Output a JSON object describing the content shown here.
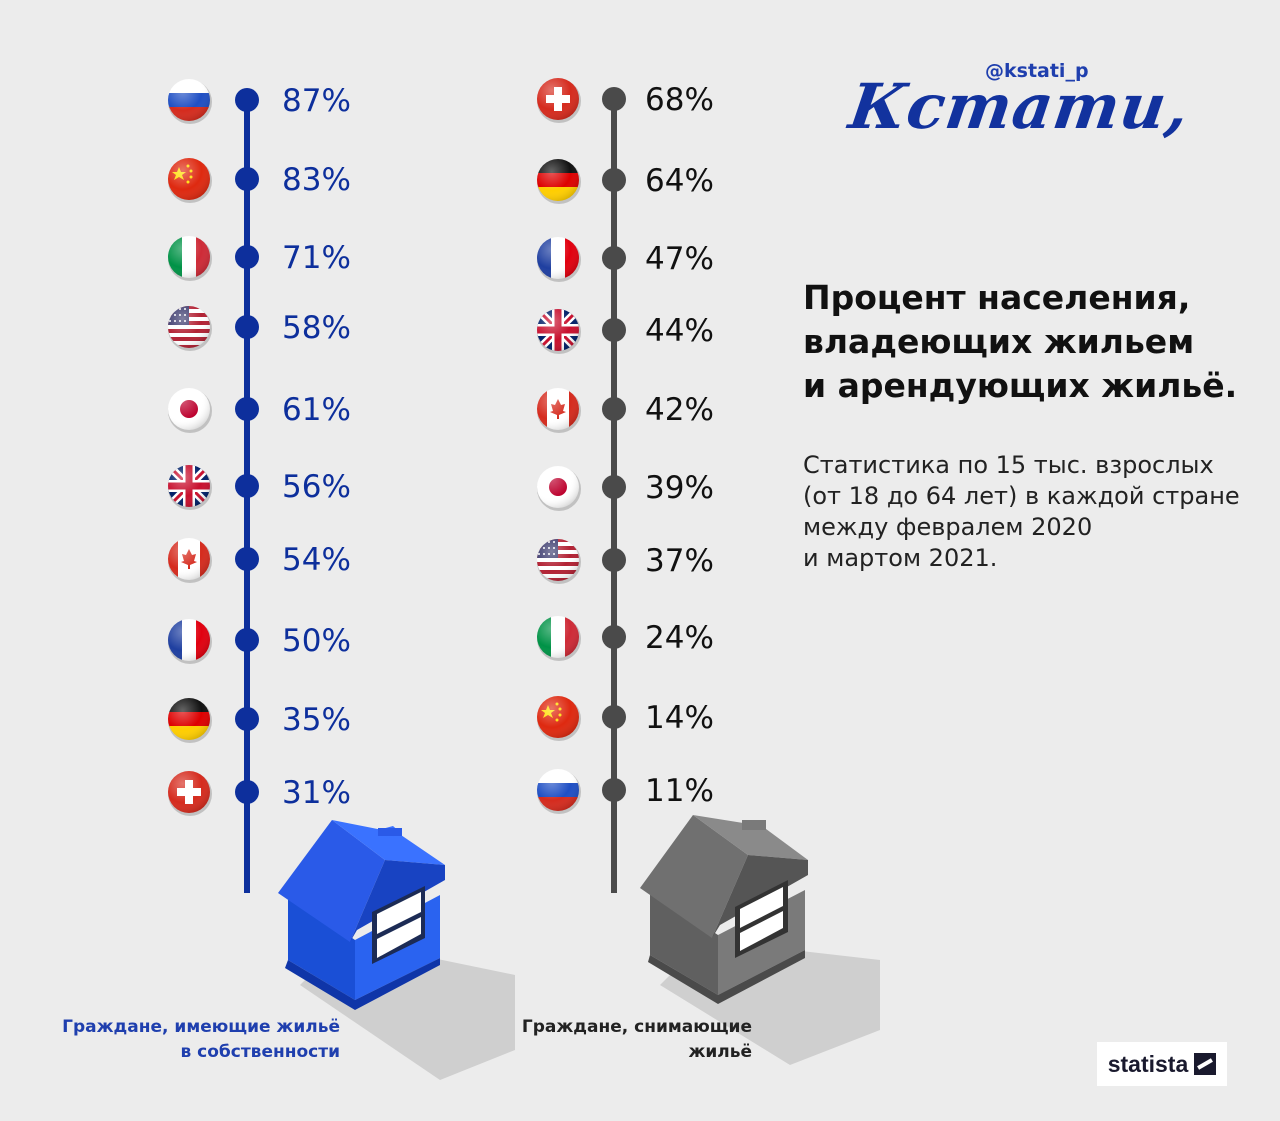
{
  "header": {
    "handle": "@kstati_p",
    "logo_text": "Кстати,"
  },
  "text": {
    "title_line1": "Процент населения,",
    "title_line2": "владеющих жильем",
    "title_line3": "и арендующих жильё.",
    "subtitle_line1": "Статистика по 15 тыс. взрослых",
    "subtitle_line2": "(от 18 до 64 лет) в каждой стране",
    "subtitle_line3": "между февралем 2020",
    "subtitle_line4": "и мартом 2021."
  },
  "captions": {
    "own_line1": "Граждане, имеющие жильё",
    "own_line2": "в собственности",
    "rent_line1": "Граждане, снимающие",
    "rent_line2": "жильё"
  },
  "source": "statista",
  "colors": {
    "own": "#0d2f9c",
    "rent": "#4a4a4a",
    "own_house": "#1f56e0",
    "rent_house": "#707070"
  },
  "chart_data": {
    "type": "table",
    "series": [
      {
        "name": "Граждане, имеющие жильё в собственности",
        "items": [
          {
            "country": "russia",
            "value": 87,
            "label": "87%"
          },
          {
            "country": "china",
            "value": 83,
            "label": "83%"
          },
          {
            "country": "italy",
            "value": 71,
            "label": "71%"
          },
          {
            "country": "usa",
            "value": 58,
            "label": "58%"
          },
          {
            "country": "japan",
            "value": 61,
            "label": "61%"
          },
          {
            "country": "uk",
            "value": 56,
            "label": "56%"
          },
          {
            "country": "canada",
            "value": 54,
            "label": "54%"
          },
          {
            "country": "france",
            "value": 50,
            "label": "50%"
          },
          {
            "country": "germany",
            "value": 35,
            "label": "35%"
          },
          {
            "country": "switzerland",
            "value": 31,
            "label": "31%"
          }
        ]
      },
      {
        "name": "Граждане, снимающие жильё",
        "items": [
          {
            "country": "switzerland",
            "value": 68,
            "label": "68%"
          },
          {
            "country": "germany",
            "value": 64,
            "label": "64%"
          },
          {
            "country": "france",
            "value": 47,
            "label": "47%"
          },
          {
            "country": "uk",
            "value": 44,
            "label": "44%"
          },
          {
            "country": "canada",
            "value": 42,
            "label": "42%"
          },
          {
            "country": "japan",
            "value": 39,
            "label": "39%"
          },
          {
            "country": "usa",
            "value": 37,
            "label": "37%"
          },
          {
            "country": "italy",
            "value": 24,
            "label": "24%"
          },
          {
            "country": "china",
            "value": 14,
            "label": "14%"
          },
          {
            "country": "russia",
            "value": 11,
            "label": "11%"
          }
        ]
      }
    ]
  }
}
